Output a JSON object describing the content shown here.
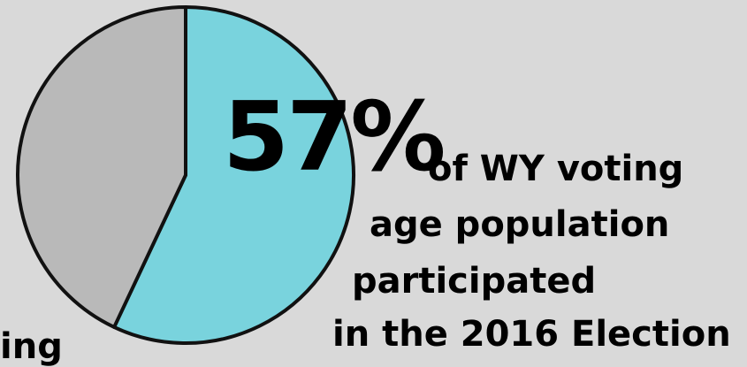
{
  "chart_data": {
    "type": "pie",
    "slices": [
      {
        "value": 57,
        "color": "#79d3dd"
      },
      {
        "value": 43,
        "color": "#b9b9b9"
      }
    ],
    "headline_value": "57%",
    "caption_lines": [
      "of WY voting",
      "age population",
      "participated",
      "in the 2016 Election"
    ],
    "partial_text": "ing"
  }
}
